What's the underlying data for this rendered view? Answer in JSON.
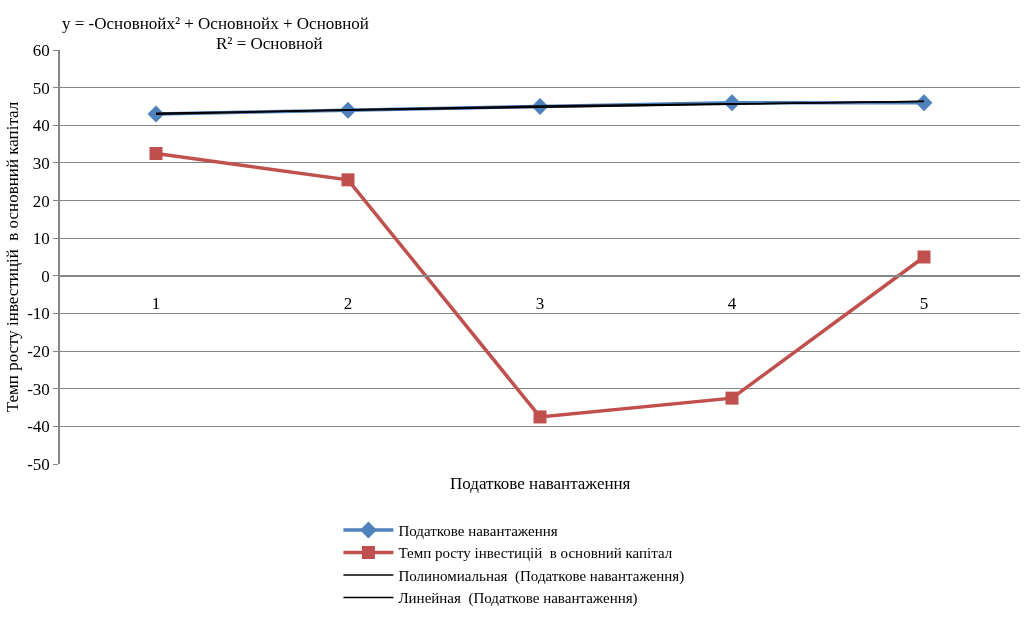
{
  "chart_data": {
    "type": "line",
    "xlabel": "Податкове навантаження",
    "ylabel": "Темп росту інвестицій  в основний капітал",
    "categories": [
      "1",
      "2",
      "3",
      "4",
      "5"
    ],
    "series": [
      {
        "name": "Податкове навантаження",
        "color": "#4f81bd",
        "marker": "diamond",
        "values": [
          43,
          44,
          45,
          46,
          46
        ]
      },
      {
        "name": "Темп росту інвестицій  в основний капітал",
        "color": "#c0504d",
        "marker": "square",
        "values": [
          32.5,
          25.5,
          -37.5,
          -32.5,
          5
        ]
      },
      {
        "name": "Полиномиальная  (Податкове навантаження)",
        "color": "#000000",
        "marker": "none",
        "values": [
          42.9,
          44.1,
          45.1,
          45.7,
          46.3
        ]
      },
      {
        "name": "Линейная  (Податкове навантаження)",
        "color": "#000000",
        "marker": "none",
        "values": [
          43.2,
          44.0,
          44.8,
          45.6,
          46.4
        ]
      }
    ],
    "annotations": [
      "y = -Основнойx² + Основнойx + Основной",
      "R² = Основной"
    ],
    "ylim": [
      -50,
      60
    ],
    "yticks": [
      -50,
      -40,
      -30,
      -20,
      -10,
      0,
      10,
      20,
      30,
      40,
      50,
      60
    ],
    "grid": "y",
    "legend": "bottom",
    "line_style": "solid"
  }
}
